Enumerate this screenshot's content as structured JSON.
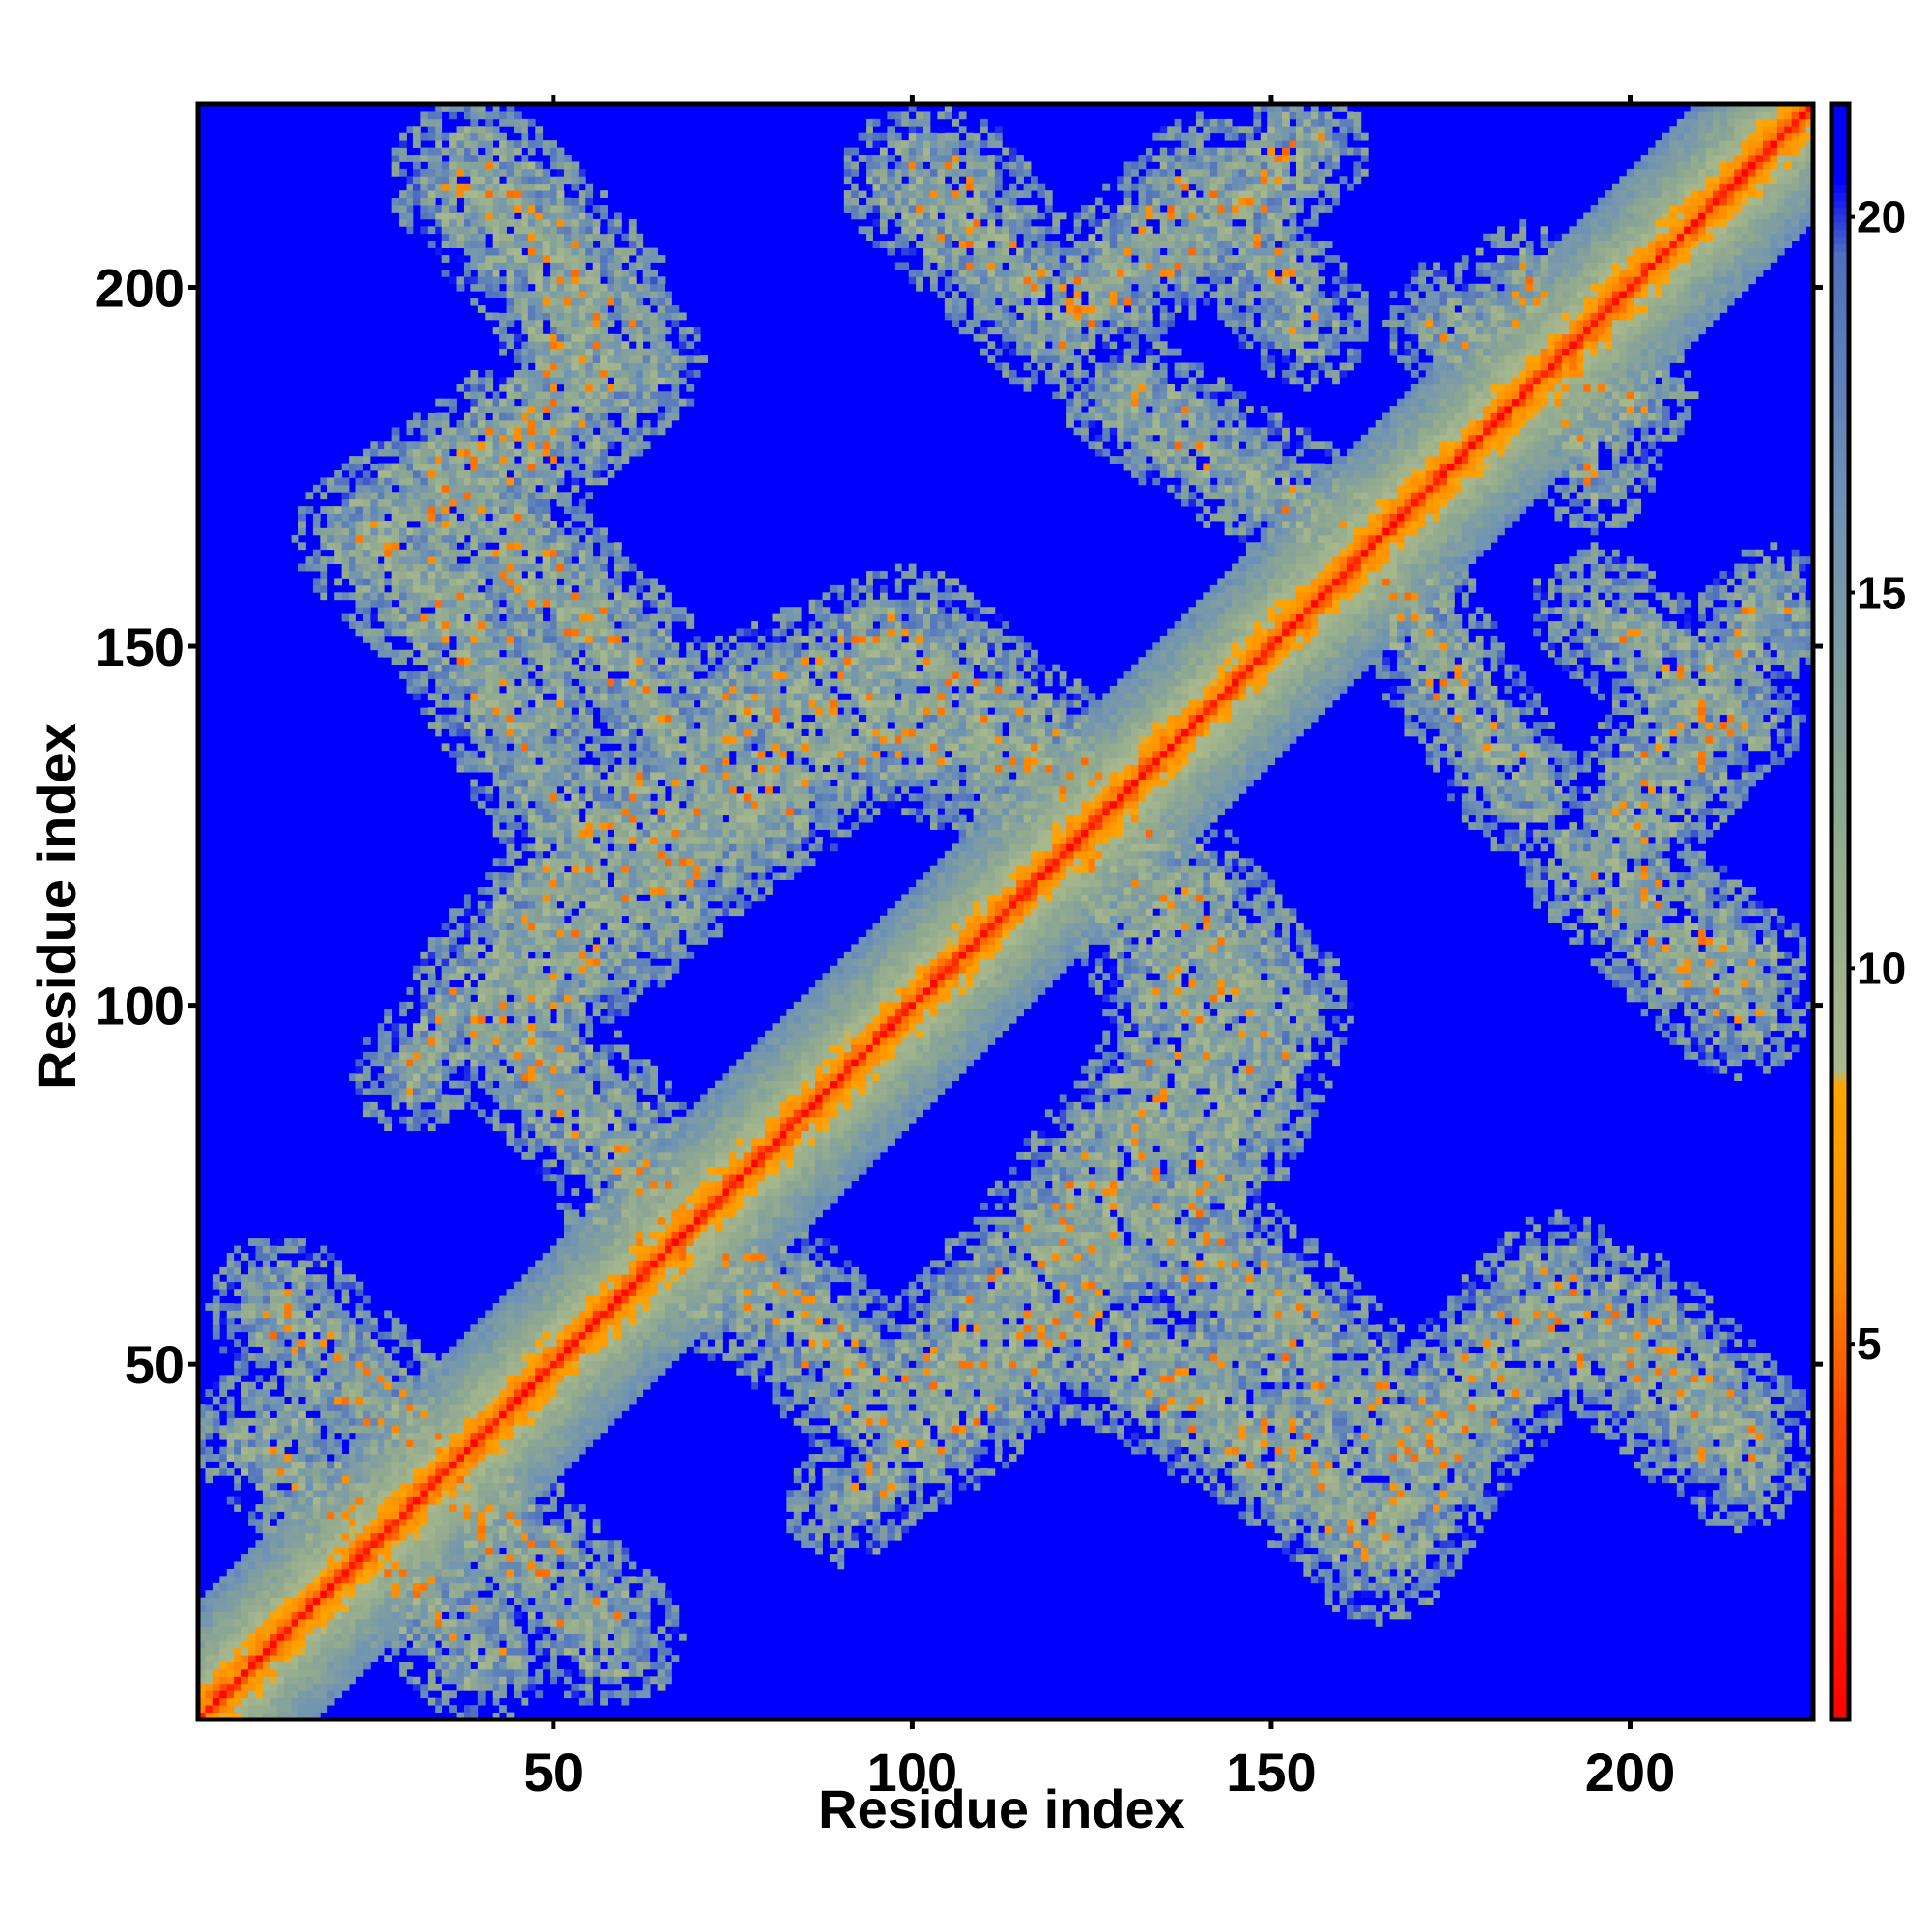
{
  "chart_data": {
    "type": "heatmap",
    "title": "",
    "xlabel": "Residue index",
    "ylabel": "Residue index",
    "n_residues": 225,
    "xlim": [
      1,
      225
    ],
    "ylim": [
      1,
      225
    ],
    "x_ticks": [
      50,
      100,
      150,
      200
    ],
    "y_ticks": [
      50,
      100,
      150,
      200
    ],
    "x_tick_labels": [
      "50",
      "100",
      "150",
      "200"
    ],
    "y_tick_labels": [
      "50",
      "100",
      "150",
      "200"
    ],
    "colorbar": {
      "range": [
        0,
        21.5
      ],
      "ticks": [
        5,
        10,
        15,
        20
      ],
      "tick_labels": [
        "5",
        "10",
        "15",
        "20"
      ],
      "stops": [
        {
          "value": 0,
          "color": "#ff0000"
        },
        {
          "value": 4,
          "color": "#ff4500"
        },
        {
          "value": 6,
          "color": "#ff8c00"
        },
        {
          "value": 8.5,
          "color": "#ffa500"
        },
        {
          "value": 8.6,
          "color": "#a9b98c"
        },
        {
          "value": 12,
          "color": "#8fa890"
        },
        {
          "value": 16,
          "color": "#6f93b4"
        },
        {
          "value": 19.5,
          "color": "#4f6fbf"
        },
        {
          "value": 20.5,
          "color": "#0000ff"
        }
      ]
    },
    "background_value_beyond_cutoff": 21,
    "background_color": "#0000ff",
    "diagonal_band_halfwidth": 16,
    "contact_bands": [
      {
        "points": [
          [
            25,
            25
          ],
          [
            40,
            10
          ]
        ],
        "width": 6
      },
      {
        "points": [
          [
            34,
            36
          ],
          [
            58,
            12
          ]
        ],
        "width": 6
      },
      {
        "points": [
          [
            38,
            215
          ],
          [
            60,
            190
          ],
          [
            38,
            170
          ],
          [
            60,
            148
          ],
          [
            75,
            125
          ],
          [
            95,
            140
          ],
          [
            115,
            132
          ],
          [
            125,
            125
          ],
          [
            145,
            105
          ],
          [
            130,
            80
          ],
          [
            115,
            62
          ],
          [
            100,
            45
          ]
        ],
        "width": 7
      },
      {
        "points": [
          [
            100,
            45
          ],
          [
            120,
            62
          ],
          [
            135,
            82
          ],
          [
            150,
            100
          ],
          [
            135,
            118
          ],
          [
            115,
            135
          ],
          [
            98,
            150
          ],
          [
            75,
            140
          ],
          [
            55,
            120
          ],
          [
            40,
            100
          ],
          [
            58,
            82
          ],
          [
            72,
            62
          ]
        ],
        "width": 7
      },
      {
        "points": [
          [
            105,
            215
          ],
          [
            120,
            195
          ]
        ],
        "width": 6
      },
      {
        "points": [
          [
            120,
            195
          ],
          [
            140,
            215
          ]
        ],
        "width": 5
      },
      {
        "points": [
          [
            140,
            215
          ],
          [
            155,
            195
          ]
        ],
        "width": 5
      },
      {
        "points": [
          [
            140,
            48
          ],
          [
            155,
            35
          ],
          [
            165,
            25
          ],
          [
            175,
            40
          ],
          [
            185,
            52
          ],
          [
            200,
            55
          ],
          [
            215,
            40
          ]
        ],
        "width": 7
      },
      {
        "points": [
          [
            155,
            35
          ],
          [
            130,
            50
          ],
          [
            115,
            62
          ]
        ],
        "width": 6
      },
      {
        "points": [
          [
            195,
            120
          ],
          [
            215,
            100
          ]
        ],
        "width": 6
      },
      {
        "points": [
          [
            195,
            120
          ],
          [
            210,
            145
          ],
          [
            220,
            155
          ]
        ],
        "width": 5
      },
      {
        "points": [
          [
            185,
            200
          ],
          [
            195,
            175
          ]
        ],
        "width": 5
      },
      {
        "points": [
          [
            165,
            165
          ],
          [
            145,
            175
          ],
          [
            130,
            185
          ]
        ],
        "width": 5
      },
      {
        "points": [
          [
            45,
            110
          ],
          [
            30,
            90
          ]
        ],
        "width": 4
      }
    ]
  }
}
